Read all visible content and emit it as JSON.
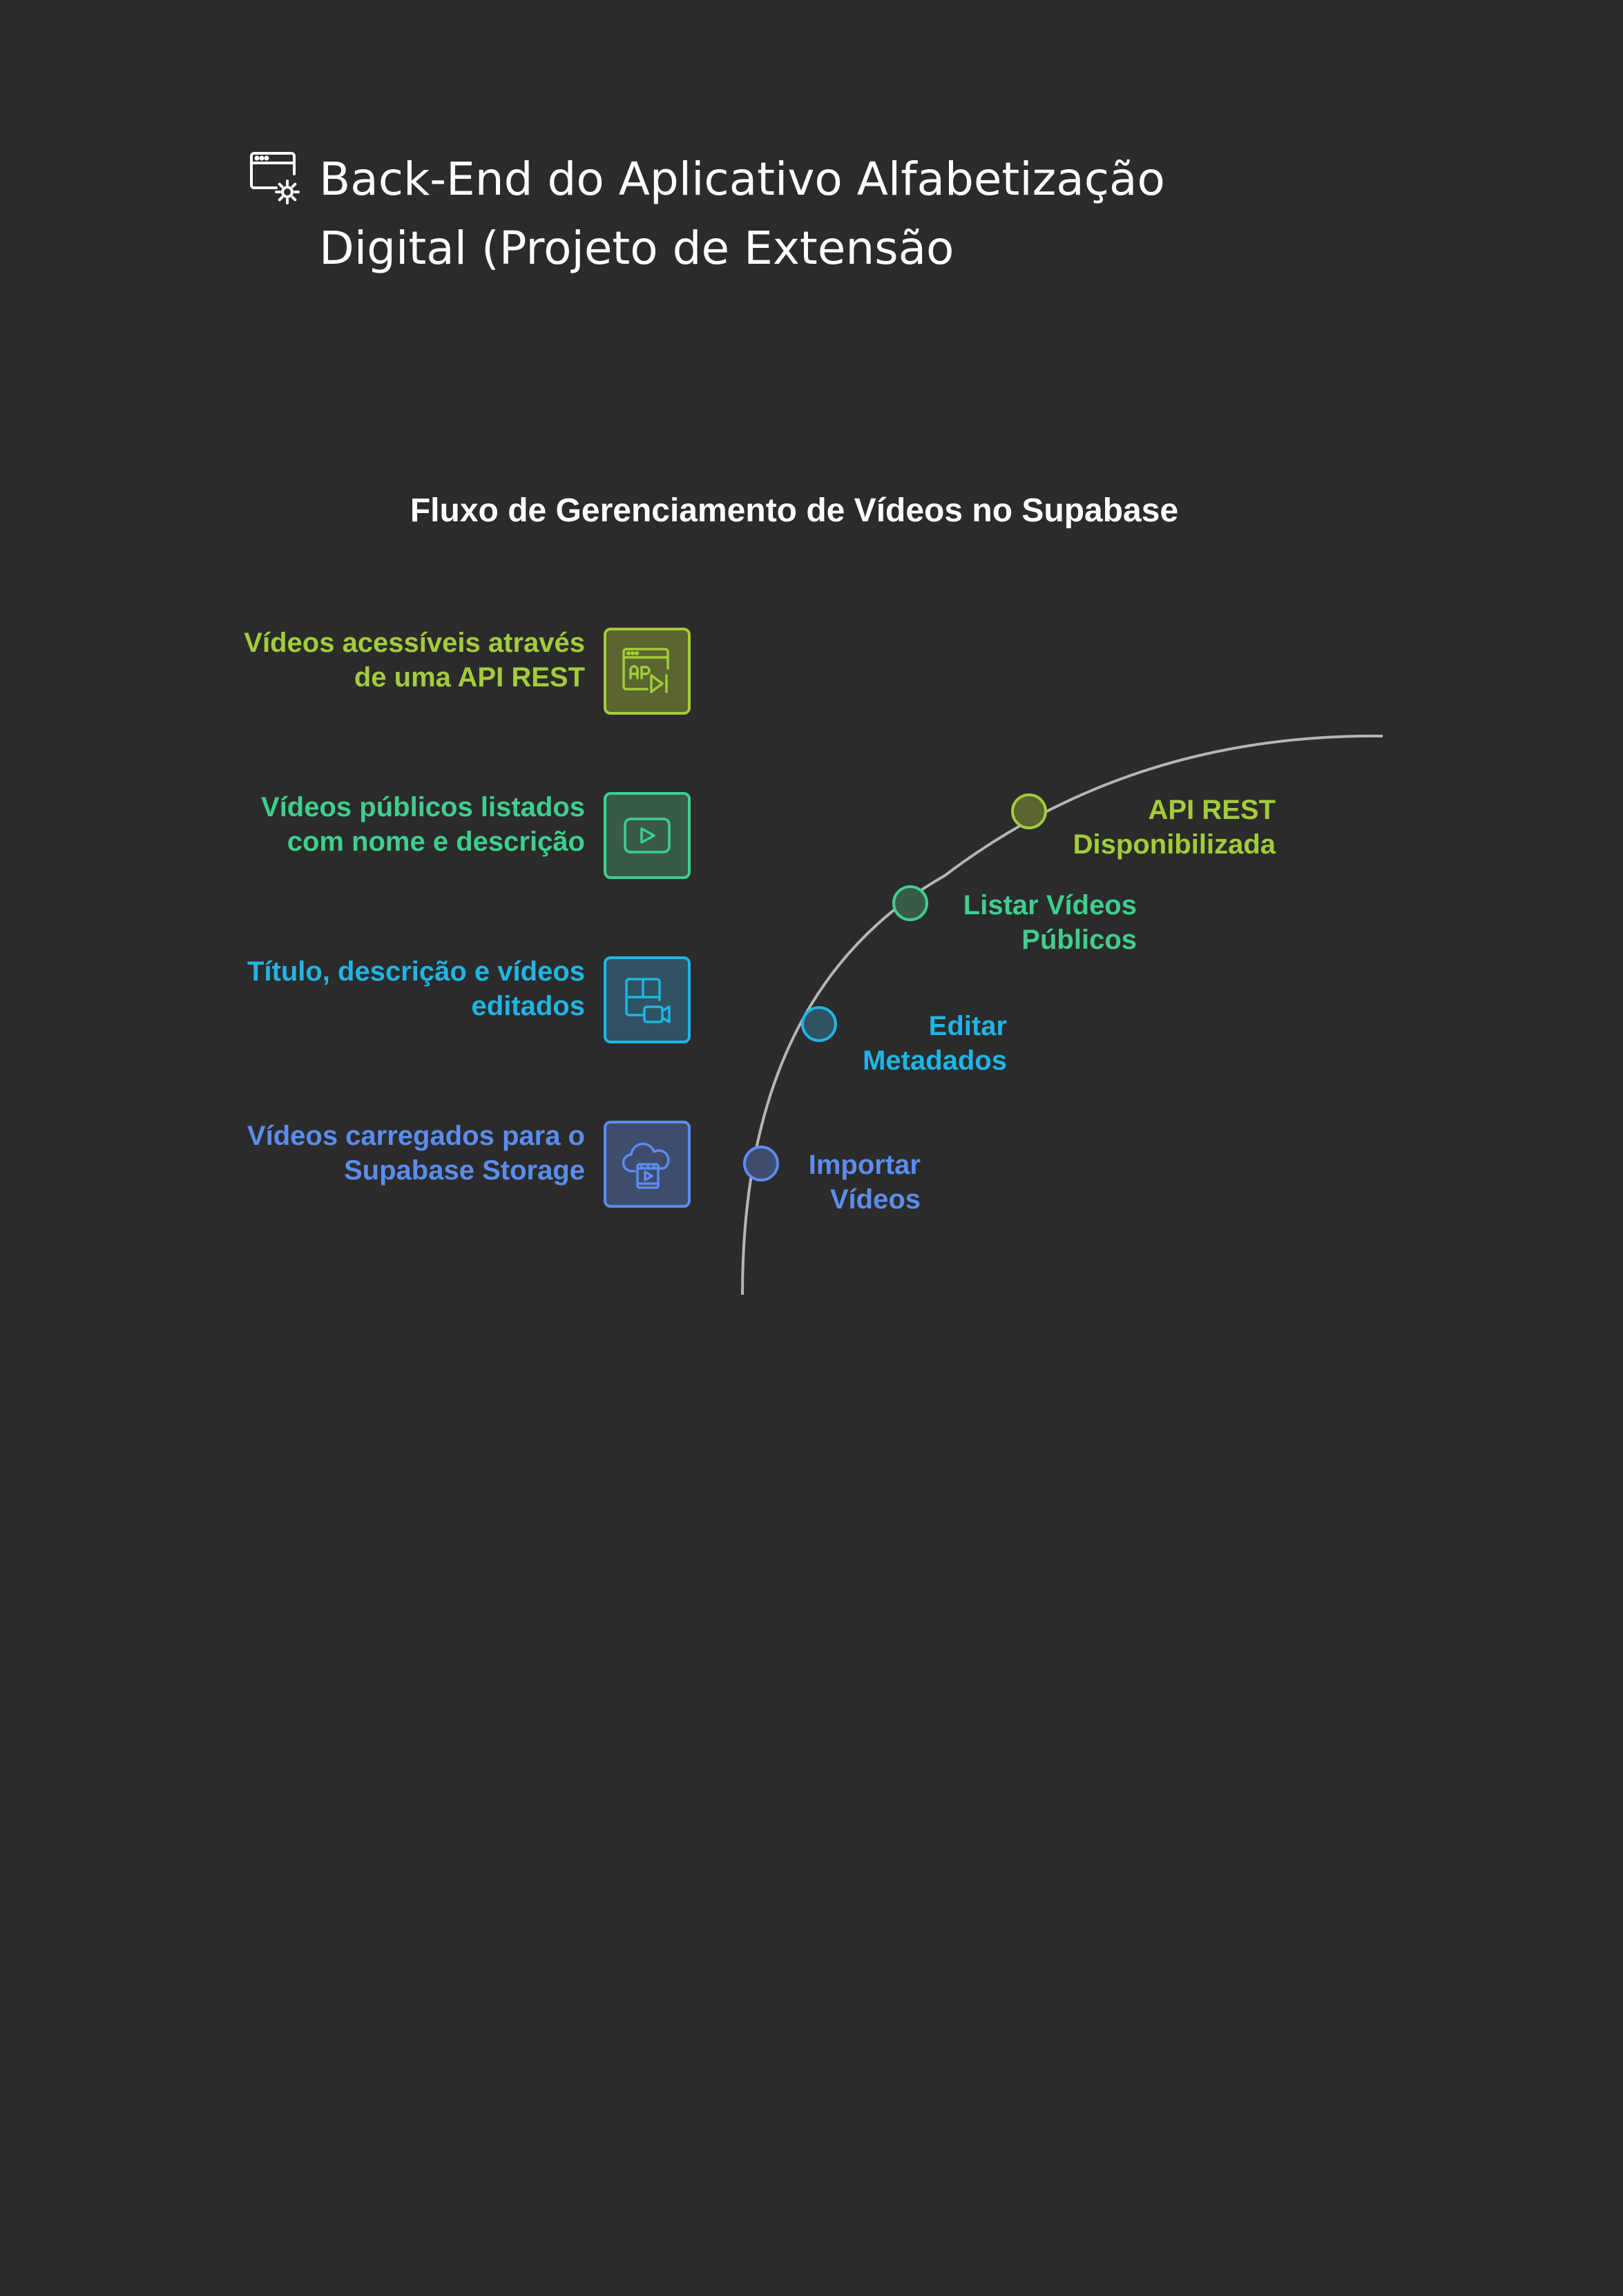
{
  "header": {
    "title_line1": "Back-End do Aplicativo Alfabetização",
    "title_line2": "Digital (Projeto de Extensão",
    "icon": "browser-settings-icon"
  },
  "diagram": {
    "title": "Fluxo de Gerenciamento de Vídeos no Supabase",
    "stages": [
      {
        "description_line1": "Vídeos acessíveis através",
        "description_line2": "de uma API REST",
        "icon": "api-video-icon",
        "step_line1": "API REST",
        "step_line2": "Disponibilizada",
        "color": "#a3cc3a",
        "fill": "#5a6530"
      },
      {
        "description_line1": "Vídeos públicos listados",
        "description_line2": "com nome e descrição",
        "icon": "play-video-icon",
        "step_line1": "Listar Vídeos",
        "step_line2": "Públicos",
        "color": "#3ecf8e",
        "fill": "#3a5a48"
      },
      {
        "description_line1": "Título, descrição e vídeos",
        "description_line2": "editados",
        "icon": "layout-video-camera-icon",
        "step_line1": "Editar",
        "step_line2": "Metadados",
        "color": "#1fb5e6",
        "fill": "#2f5363"
      },
      {
        "description_line1": "Vídeos carregados para o",
        "description_line2": "Supabase Storage",
        "icon": "cloud-video-upload-icon",
        "step_line1": "Importar",
        "step_line2": "Vídeos",
        "color": "#5b8def",
        "fill": "#3e4c6e"
      }
    ]
  }
}
